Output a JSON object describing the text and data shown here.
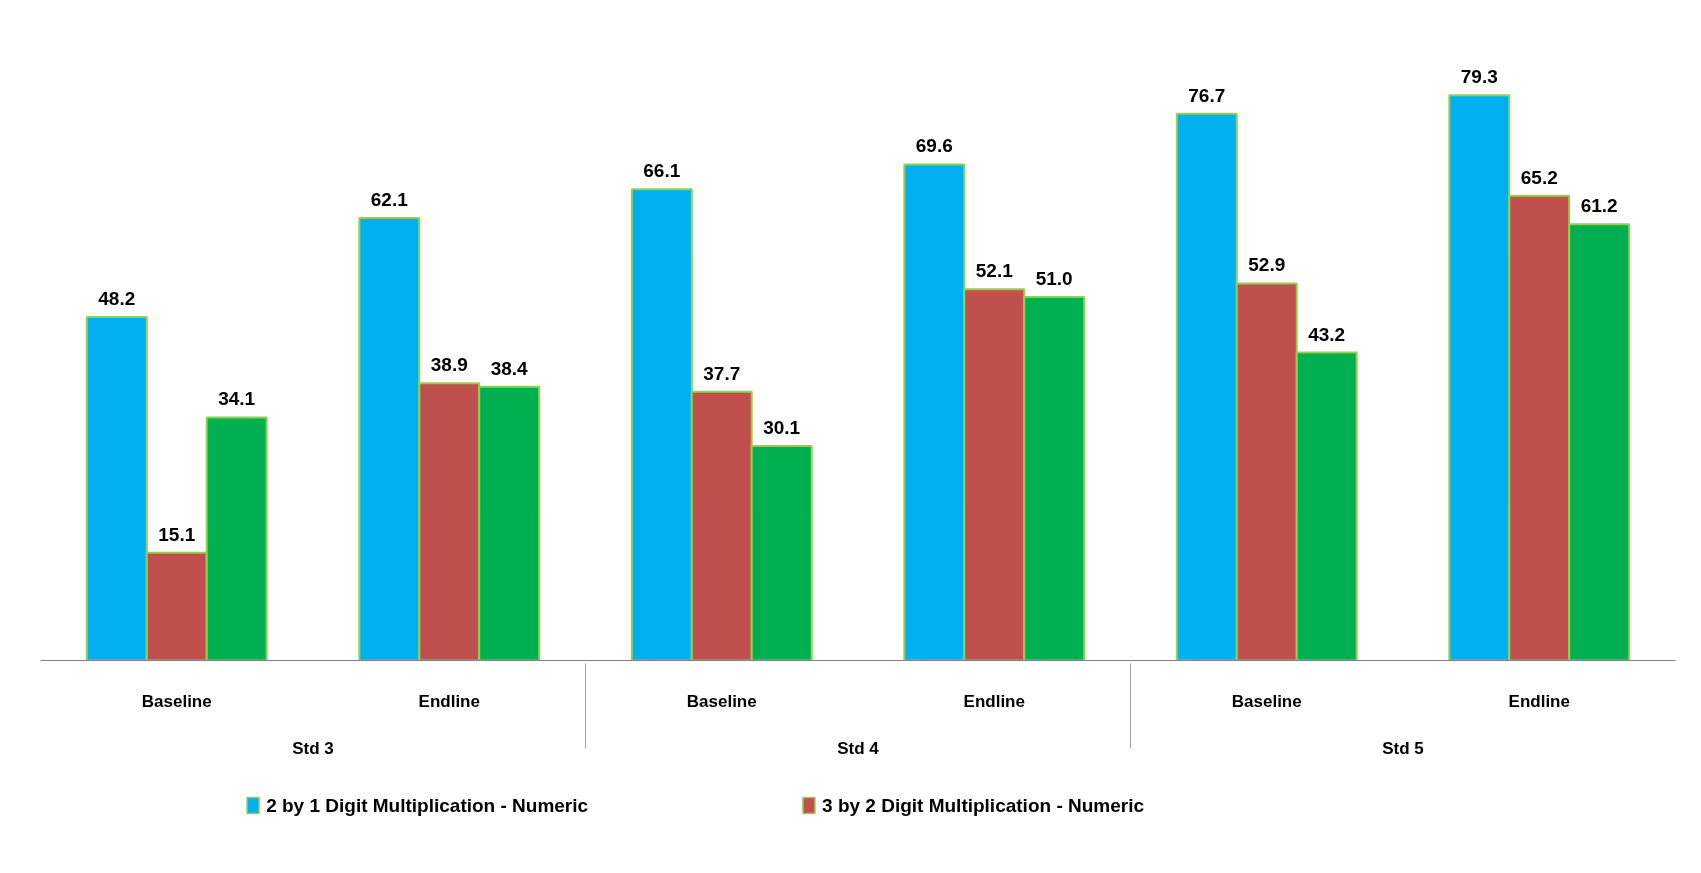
{
  "chart_data": {
    "type": "bar",
    "categories": [
      "Baseline",
      "Endline",
      "Baseline",
      "Endline",
      "Baseline",
      "Endline"
    ],
    "annotations": [
      "Std 3",
      "Std 4",
      "Std 5"
    ],
    "series": [
      {
        "name": "2 by 1 Digit Multiplication - Numeric",
        "color": "#00b0f0",
        "values": [
          48.2,
          62.1,
          66.1,
          69.6,
          76.7,
          79.3
        ]
      },
      {
        "name": "3 by 2 Digit Multiplication - Numeric",
        "color": "#c0504d",
        "values": [
          15.1,
          38.9,
          37.7,
          52.1,
          52.9,
          65.2
        ]
      },
      {
        "color": "#00b050",
        "values": [
          34.1,
          38.4,
          30.1,
          51.0,
          43.2,
          61.2
        ],
        "value_labels": [
          "34.1",
          "38.4",
          "30.1",
          "51.0",
          "43.2",
          "61.2"
        ]
      }
    ],
    "data_labels": true,
    "grid": false,
    "legend": "bottom"
  }
}
